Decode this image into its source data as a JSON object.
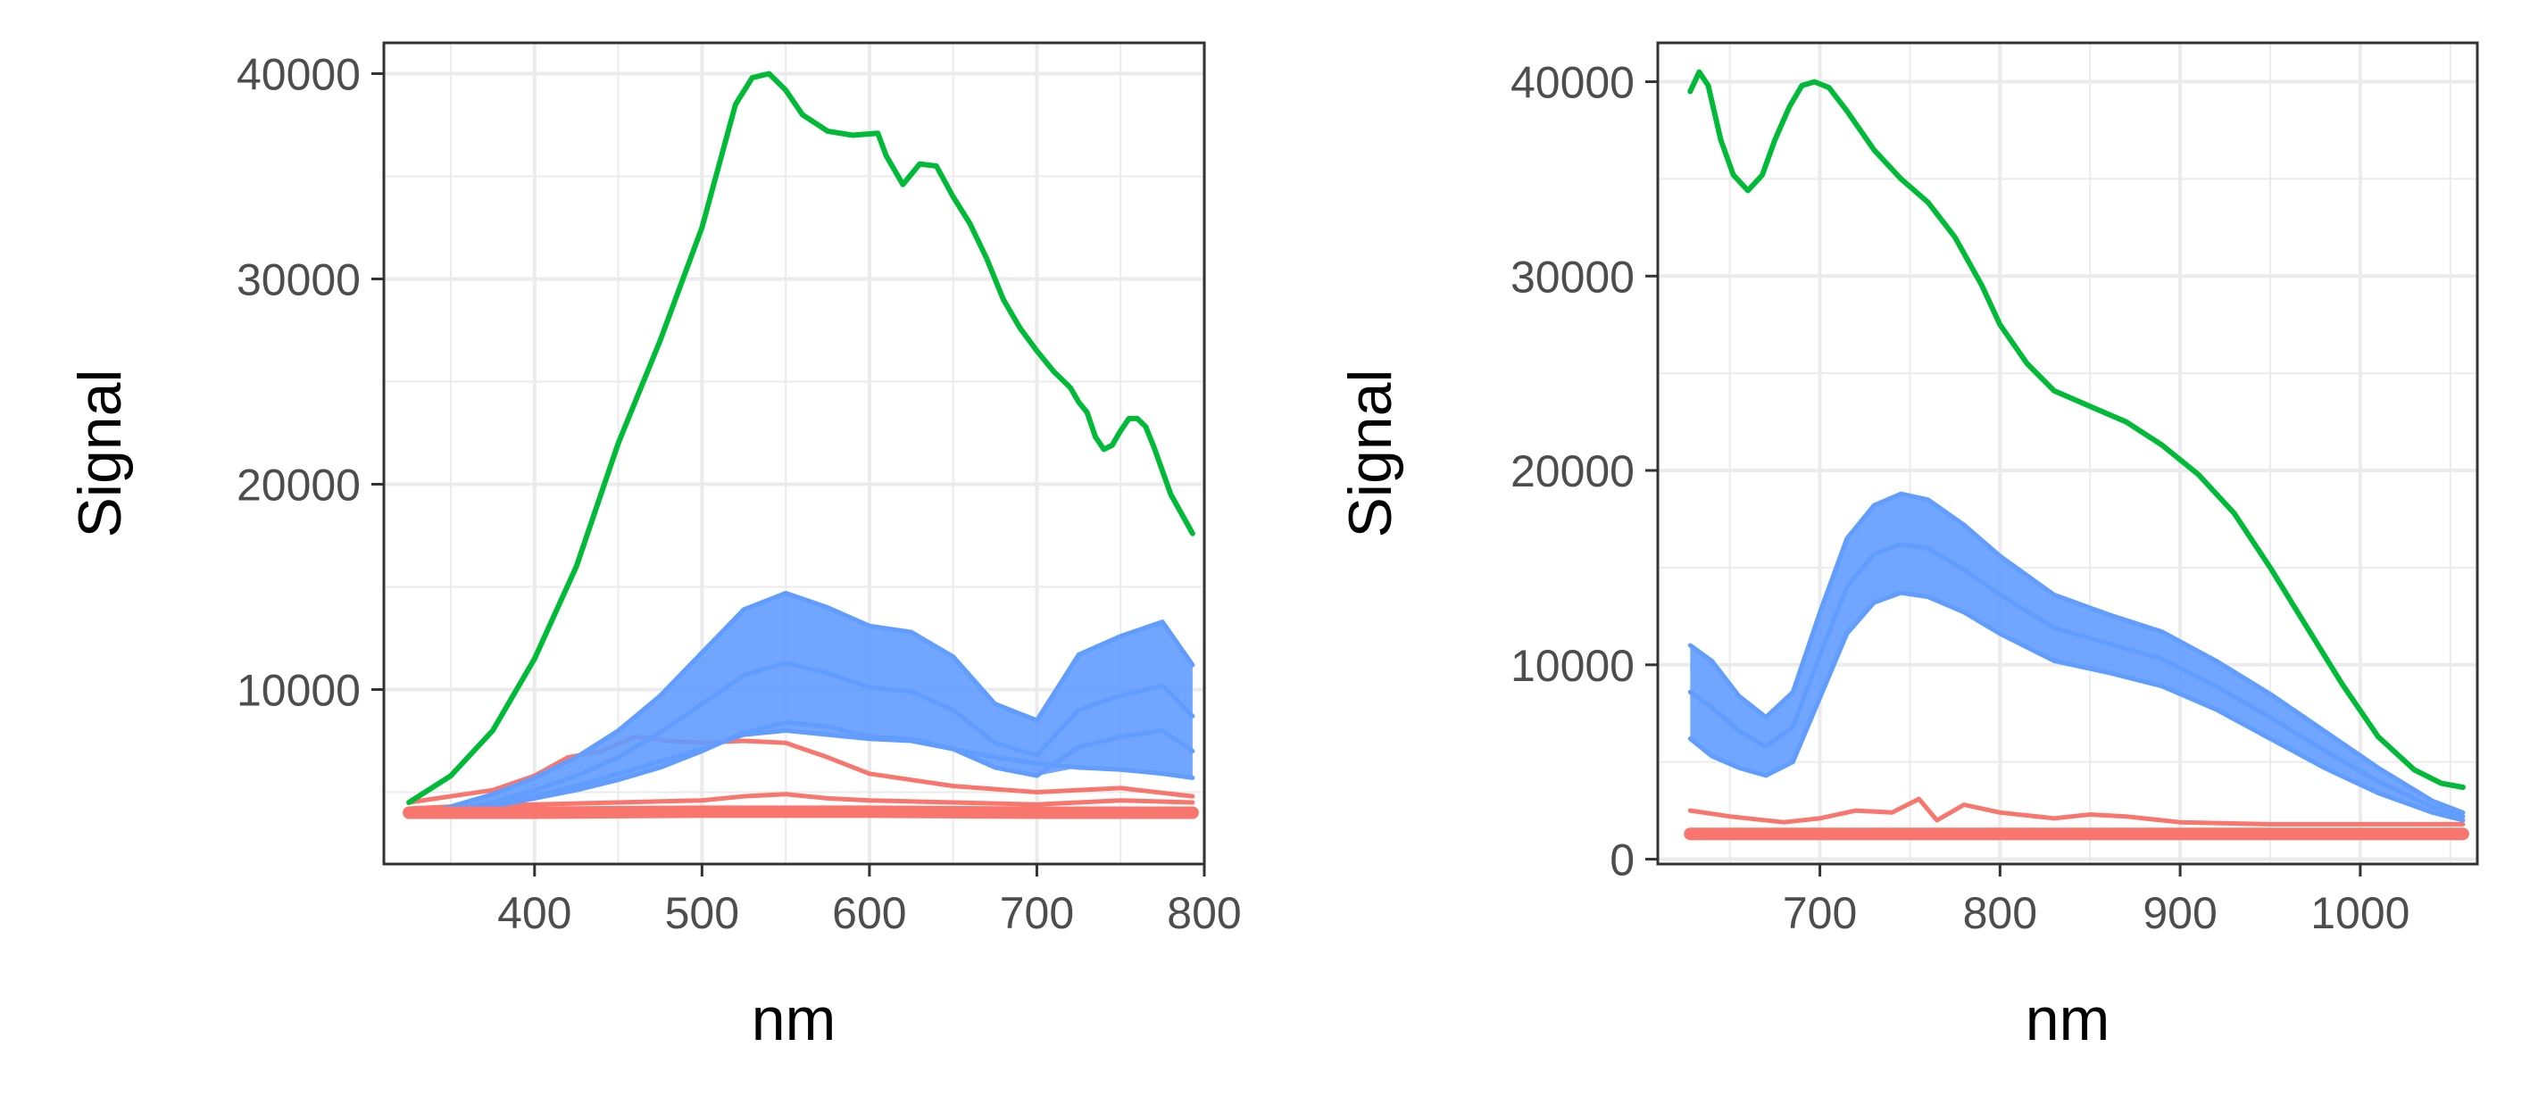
{
  "chart_data": [
    {
      "type": "line",
      "title": "",
      "xlabel": "nm",
      "ylabel": "Signal",
      "xlim": [
        310,
        800
      ],
      "ylim": [
        1500,
        41500
      ],
      "x_ticks": [
        "400",
        "500",
        "600",
        "700",
        "800"
      ],
      "y_ticks": [
        "10000",
        "20000",
        "30000",
        "40000"
      ],
      "grid": true,
      "legend": "none",
      "colors": {
        "green": "#00BA38",
        "blue": "#619CFF",
        "red": "#F8766D"
      },
      "series": [
        {
          "color": "#00BA38",
          "x": [
            325,
            350,
            375,
            400,
            425,
            450,
            475,
            500,
            510,
            520,
            530,
            540,
            550,
            560,
            575,
            590,
            605,
            610,
            620,
            630,
            640,
            650,
            660,
            670,
            680,
            690,
            700,
            710,
            720,
            725,
            730,
            735,
            740,
            745,
            750,
            755,
            760,
            765,
            770,
            780,
            793
          ],
          "y": [
            4500,
            5800,
            8000,
            11500,
            16000,
            22000,
            27000,
            32500,
            35500,
            38500,
            39800,
            40000,
            39200,
            38000,
            37200,
            37000,
            37100,
            36000,
            34600,
            35600,
            35500,
            34000,
            32700,
            31000,
            29000,
            27600,
            26500,
            25500,
            24700,
            24000,
            23500,
            22300,
            21700,
            21900,
            22600,
            23200,
            23200,
            22800,
            21800,
            19500,
            17600
          ]
        },
        {
          "color": "#619CFF",
          "x": [
            325,
            350,
            375,
            400,
            425,
            450,
            475,
            500,
            525,
            550,
            575,
            600,
            625,
            650,
            675,
            700,
            725,
            750,
            775,
            793
          ],
          "y": [
            3900,
            4300,
            4900,
            5700,
            6700,
            8000,
            9700,
            11800,
            13900,
            14700,
            14000,
            13100,
            12800,
            11600,
            9300,
            8500,
            11700,
            12600,
            13300,
            11200
          ]
        },
        {
          "color": "#619CFF",
          "x": [
            325,
            350,
            375,
            400,
            425,
            450,
            475,
            500,
            525,
            550,
            575,
            600,
            625,
            650,
            675,
            700,
            725,
            750,
            775,
            793
          ],
          "y": [
            3900,
            4100,
            4400,
            4800,
            5300,
            5900,
            6500,
            7100,
            7800,
            8000,
            7800,
            7600,
            7500,
            7100,
            6700,
            6400,
            6200,
            6100,
            5900,
            5700
          ]
        },
        {
          "color": "#619CFF",
          "x": [
            325,
            350,
            375,
            400,
            425,
            450,
            475,
            500,
            525,
            550,
            575,
            600,
            625,
            650,
            675,
            700,
            725,
            750,
            775,
            793
          ],
          "y": [
            3800,
            4100,
            4500,
            5100,
            5800,
            6700,
            7900,
            9300,
            10700,
            11300,
            10800,
            10100,
            9900,
            9000,
            7400,
            6800,
            9000,
            9700,
            10200,
            8700
          ]
        },
        {
          "color": "#619CFF",
          "x": [
            325,
            350,
            375,
            400,
            425,
            450,
            475,
            500,
            525,
            550,
            575,
            600,
            625,
            650,
            675,
            700,
            725,
            750,
            775,
            793
          ],
          "y": [
            3800,
            4000,
            4300,
            4700,
            5100,
            5600,
            6200,
            7000,
            7900,
            8400,
            8200,
            7700,
            7600,
            7100,
            6200,
            5800,
            7200,
            7700,
            8000,
            7000
          ]
        },
        {
          "color": "#F8766D",
          "x": [
            325,
            350,
            375,
            400,
            420,
            440,
            460,
            480,
            500,
            525,
            550,
            575,
            600,
            650,
            700,
            750,
            793
          ],
          "y": [
            4500,
            4800,
            5100,
            5800,
            6700,
            7000,
            7700,
            7500,
            7400,
            7500,
            7400,
            6700,
            5900,
            5300,
            5000,
            5200,
            4800
          ]
        },
        {
          "color": "#F8766D",
          "x": [
            325,
            350,
            375,
            400,
            450,
            500,
            525,
            550,
            575,
            600,
            650,
            700,
            750,
            793
          ],
          "y": [
            4200,
            4300,
            4350,
            4400,
            4500,
            4600,
            4800,
            4900,
            4700,
            4600,
            4500,
            4400,
            4600,
            4500
          ]
        },
        {
          "color": "#F8766D",
          "x": [
            325,
            400,
            500,
            600,
            700,
            793
          ],
          "y": [
            4000,
            4000,
            4050,
            4050,
            4000,
            4000
          ]
        }
      ]
    },
    {
      "type": "line",
      "title": "",
      "xlabel": "nm",
      "ylabel": "Signal",
      "xlim": [
        610,
        1065
      ],
      "ylim": [
        -250,
        42000
      ],
      "x_ticks": [
        "700",
        "800",
        "900",
        "1000"
      ],
      "y_ticks": [
        "0",
        "10000",
        "20000",
        "30000",
        "40000"
      ],
      "grid": true,
      "legend": "none",
      "colors": {
        "green": "#00BA38",
        "blue": "#619CFF",
        "red": "#F8766D"
      },
      "series": [
        {
          "color": "#00BA38",
          "x": [
            628,
            633,
            638,
            645,
            652,
            660,
            668,
            675,
            683,
            690,
            697,
            705,
            715,
            730,
            745,
            760,
            775,
            790,
            800,
            815,
            830,
            850,
            870,
            890,
            910,
            930,
            950,
            970,
            990,
            1010,
            1030,
            1045,
            1057
          ],
          "y": [
            39500,
            40500,
            39800,
            37000,
            35200,
            34400,
            35200,
            37000,
            38700,
            39800,
            40000,
            39700,
            38500,
            36500,
            35000,
            33800,
            32000,
            29500,
            27500,
            25500,
            24100,
            23300,
            22500,
            21300,
            19800,
            17800,
            15000,
            12000,
            9000,
            6300,
            4600,
            3900,
            3700
          ]
        },
        {
          "color": "#619CFF",
          "x": [
            628,
            640,
            655,
            670,
            685,
            700,
            715,
            730,
            745,
            760,
            780,
            800,
            830,
            860,
            890,
            920,
            950,
            980,
            1010,
            1040,
            1057
          ],
          "y": [
            11000,
            10200,
            8400,
            7300,
            8600,
            12700,
            16500,
            18200,
            18800,
            18500,
            17200,
            15600,
            13600,
            12600,
            11700,
            10200,
            8500,
            6600,
            4700,
            3000,
            2400
          ]
        },
        {
          "color": "#619CFF",
          "x": [
            628,
            640,
            655,
            670,
            685,
            700,
            715,
            730,
            745,
            760,
            780,
            800,
            830,
            860,
            890,
            920,
            950,
            980,
            1010,
            1040,
            1057
          ],
          "y": [
            6200,
            5300,
            4700,
            4300,
            5000,
            8300,
            11600,
            13200,
            13700,
            13500,
            12700,
            11600,
            10200,
            9600,
            8900,
            7700,
            6200,
            4700,
            3400,
            2400,
            2000
          ]
        },
        {
          "color": "#619CFF",
          "x": [
            628,
            640,
            655,
            670,
            685,
            700,
            715,
            730,
            745,
            760,
            780,
            800,
            830,
            860,
            890,
            920,
            950,
            980,
            1010,
            1040,
            1057
          ],
          "y": [
            8600,
            7800,
            6600,
            5800,
            6800,
            10500,
            14000,
            15700,
            16200,
            16000,
            14900,
            13600,
            11900,
            11100,
            10300,
            8900,
            7300,
            5600,
            4000,
            2700,
            2200
          ]
        },
        {
          "color": "#F8766D",
          "x": [
            628,
            650,
            680,
            700,
            720,
            740,
            755,
            765,
            780,
            800,
            830,
            850,
            870,
            900,
            950,
            1000,
            1057
          ],
          "y": [
            2500,
            2200,
            1900,
            2100,
            2500,
            2400,
            3100,
            2000,
            2800,
            2400,
            2100,
            2300,
            2200,
            1900,
            1800,
            1800,
            1800
          ]
        },
        {
          "color": "#F8766D",
          "x": [
            628,
            700,
            800,
            900,
            1000,
            1057
          ],
          "y": [
            1300,
            1300,
            1300,
            1300,
            1300,
            1300
          ]
        }
      ]
    }
  ]
}
